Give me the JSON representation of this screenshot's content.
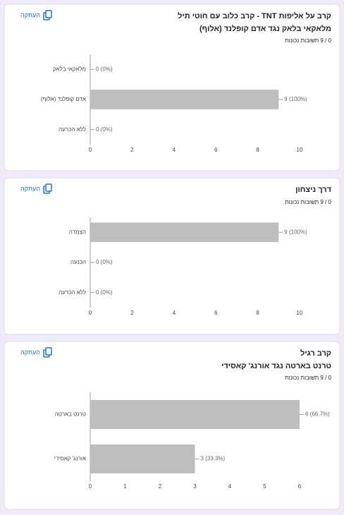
{
  "chart_data": [
    {
      "type": "bar",
      "orientation": "horizontal",
      "title": "קרב על אליפות TNT - קרב כלוב עם חוטי תיל",
      "subtitle": "מלאקאי בלאק נגד אדם קופלנד (אלוף)",
      "score": "0 / 9 תשובות נכונות",
      "copy_label": "העתקה",
      "categories": [
        "מלאקאי בלאק",
        "אדם קופלנד (אלוף)",
        "ללא הכרעה"
      ],
      "values": [
        0,
        9,
        0
      ],
      "value_labels": [
        "0 (0%)",
        "9 (100%)",
        "0 (0%)"
      ],
      "color": "#bdbdbd",
      "xlim": [
        0,
        10
      ],
      "xticks": [
        0,
        2,
        4,
        6,
        8,
        10
      ]
    },
    {
      "type": "bar",
      "orientation": "horizontal",
      "title": "דרך ניצחון",
      "score": "0 / 9 תשובות נכונות",
      "copy_label": "העתקה",
      "categories": [
        "הצמדה",
        "הכנעה",
        "ללא הכרעה"
      ],
      "values": [
        9,
        0,
        0
      ],
      "value_labels": [
        "9 (100%)",
        "0 (0%)",
        "0 (0%)"
      ],
      "color": "#bdbdbd",
      "xlim": [
        0,
        10
      ],
      "xticks": [
        0,
        2,
        4,
        6,
        8,
        10
      ]
    },
    {
      "type": "bar",
      "orientation": "horizontal",
      "title": "קרב רגיל",
      "subtitle": "טרנט בארטה נגד אורנג' קאסידי",
      "score": "0 / 9 תשובות נכונות",
      "copy_label": "העתקה",
      "categories": [
        "טרנט בארטה",
        "אורנג' קאסידי"
      ],
      "values": [
        6,
        3
      ],
      "value_labels": [
        "6 (66.7%)",
        "3 (33.3%)"
      ],
      "color": "#bdbdbd",
      "xlim": [
        0,
        6
      ],
      "xticks": [
        0,
        1,
        2,
        3,
        4,
        5,
        6
      ]
    }
  ]
}
